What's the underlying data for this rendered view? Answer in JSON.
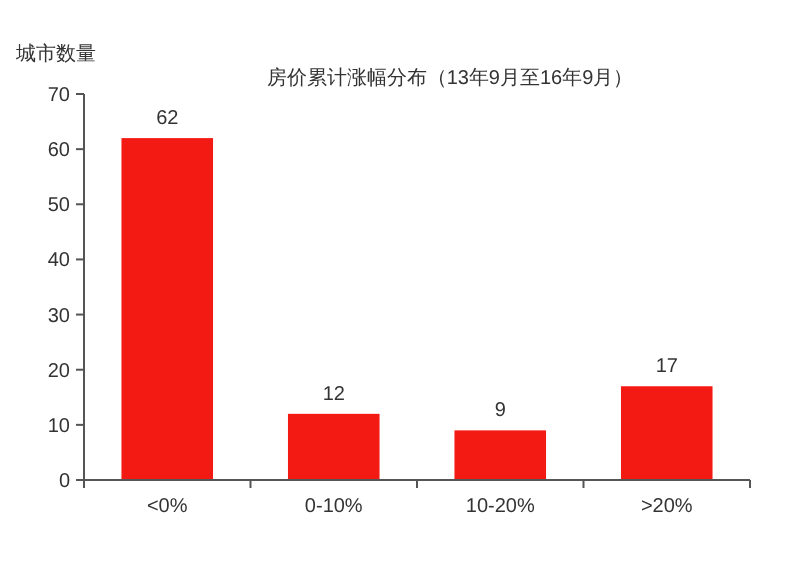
{
  "chart_data": {
    "type": "bar",
    "title": "房价累计涨幅分布（13年9月至16年9月）",
    "ylabel": "城市数量",
    "categories": [
      "<0%",
      "0-10%",
      "10-20%",
      ">20%"
    ],
    "values": [
      62,
      12,
      9,
      17
    ],
    "color": "#f41a14",
    "ylim": [
      0,
      70
    ],
    "yticks": [
      0,
      10,
      20,
      30,
      40,
      50,
      60,
      70
    ],
    "data_labels": true
  }
}
